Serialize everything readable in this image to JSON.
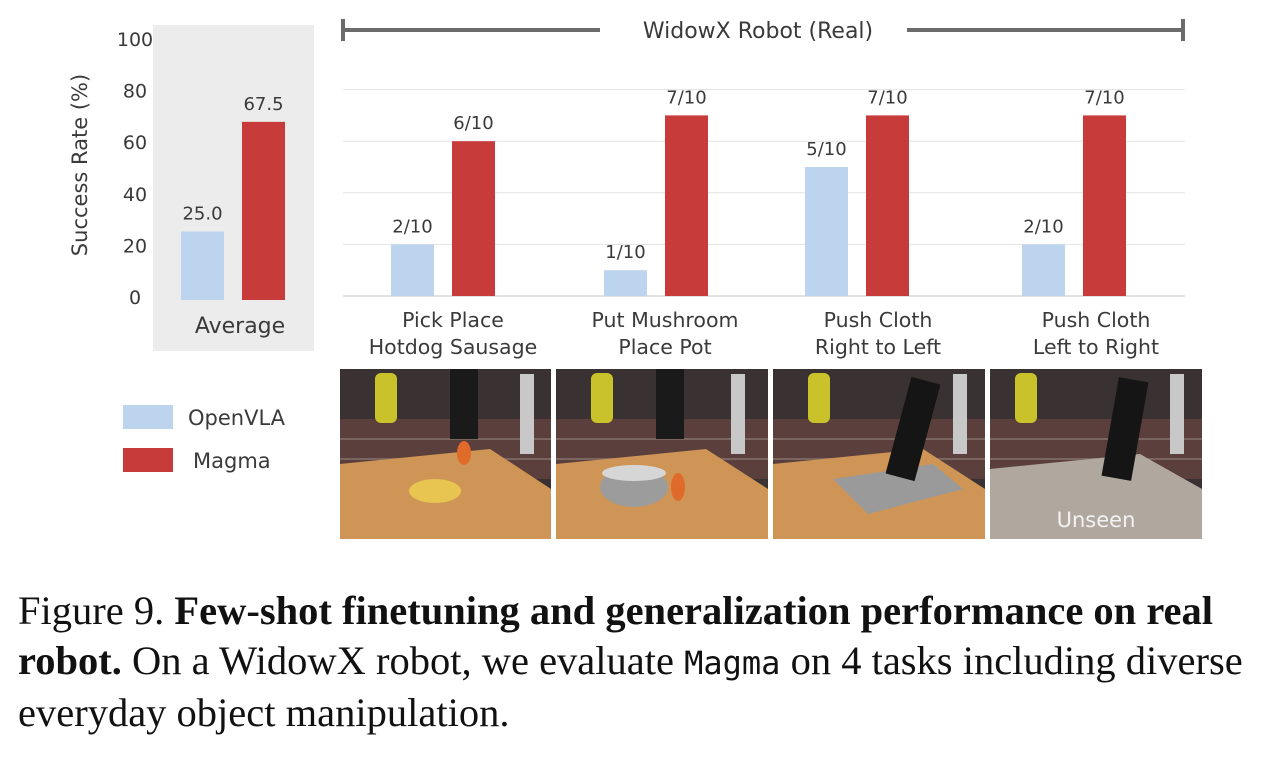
{
  "chart_data": {
    "type": "bar",
    "ylabel": "Success Rate (%)",
    "ylim": [
      0,
      100
    ],
    "yticks": [
      0,
      20,
      40,
      60,
      80,
      100
    ],
    "legend": [
      "OpenVLA",
      "Magma"
    ],
    "legend_placement": "bottom-left",
    "colors": {
      "OpenVLA": "#bcd4ee",
      "Magma": "#c73b3a"
    },
    "average_panel": {
      "category": "Average",
      "series": [
        {
          "name": "OpenVLA",
          "value": 25.0,
          "label": "25.0"
        },
        {
          "name": "Magma",
          "value": 67.5,
          "label": "67.5"
        }
      ]
    },
    "task_panel": {
      "title": "WidowX Robot (Real)",
      "categories": [
        [
          "Pick Place",
          "Hotdog Sausage"
        ],
        [
          "Put Mushroom",
          "Place Pot"
        ],
        [
          "Push Cloth",
          "Right to Left"
        ],
        [
          "Push Cloth",
          "Left to Right"
        ]
      ],
      "series": [
        {
          "name": "OpenVLA",
          "values": [
            20,
            10,
            50,
            20
          ],
          "labels": [
            "2/10",
            "1/10",
            "5/10",
            "2/10"
          ]
        },
        {
          "name": "Magma",
          "values": [
            60,
            70,
            70,
            70
          ],
          "labels": [
            "6/10",
            "7/10",
            "7/10",
            "7/10"
          ]
        }
      ]
    },
    "grid": true
  },
  "photos": [
    {
      "name": "photo-pick-place-hotdog",
      "overlay": ""
    },
    {
      "name": "photo-put-mushroom",
      "overlay": ""
    },
    {
      "name": "photo-push-cloth-right-left",
      "overlay": ""
    },
    {
      "name": "photo-push-cloth-left-right",
      "overlay": "Unseen"
    }
  ],
  "caption": {
    "figure": "Figure 9.",
    "bold": "Few-shot finetuning and generalization performance on real robot.",
    "text_a": "On a WidowX robot, we evaluate",
    "model": "Magma",
    "text_b": "on 4 tasks including diverse everyday object manipulation."
  }
}
